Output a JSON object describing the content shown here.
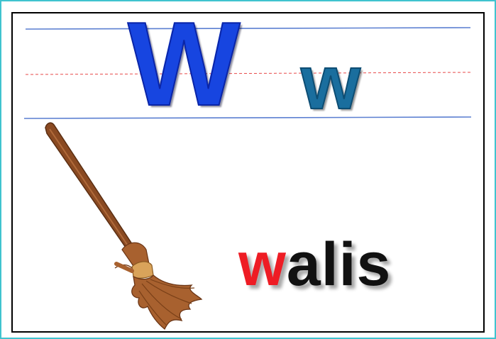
{
  "card": {
    "uppercase_letter": "W",
    "lowercase_letter": "w",
    "word_first_letter": "w",
    "word_rest": "alis",
    "picture": "broom-icon"
  },
  "colors": {
    "outer_border": "#3fc3cf",
    "inner_border": "#000000",
    "guide_line": "#5b7fd1",
    "mid_dash": "#e84a4a",
    "uppercase": "#1745e0",
    "lowercase": "#1a6e9e",
    "highlight_letter": "#ee1c24",
    "word_text": "#111111",
    "broom_handle": "#8a4a22",
    "broom_bristles": "#a8612f",
    "broom_band": "#d9a35a"
  }
}
